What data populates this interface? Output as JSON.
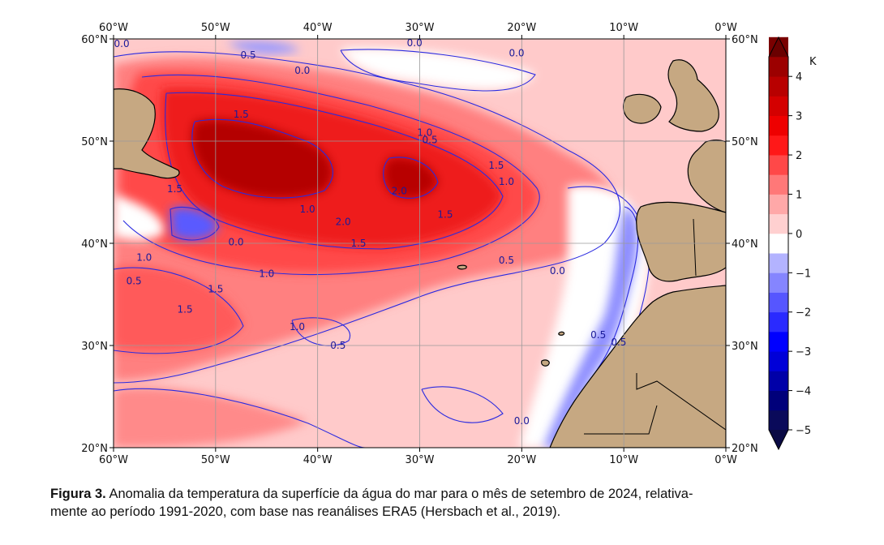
{
  "map": {
    "lon_labels": [
      "60°W",
      "50°W",
      "40°W",
      "30°W",
      "20°W",
      "10°W",
      "0°W"
    ],
    "lat_labels": [
      "60°N",
      "50°N",
      "40°N",
      "30°N",
      "20°N"
    ],
    "lon_range": [
      -60,
      0
    ],
    "lat_range": [
      20,
      60
    ],
    "grid": true,
    "land_color": "#c6a882",
    "contour_color": "#2a2ae0",
    "contour_labels": [
      {
        "text": "0.0",
        "lon": -59.2,
        "lat": 59.2
      },
      {
        "text": "0.5",
        "lon": -46.8,
        "lat": 58.1
      },
      {
        "text": "0.0",
        "lon": -41.5,
        "lat": 56.6
      },
      {
        "text": "0.0",
        "lon": -30.5,
        "lat": 59.3
      },
      {
        "text": "0.0",
        "lon": -20.5,
        "lat": 58.3
      },
      {
        "text": "1.5",
        "lon": -47.5,
        "lat": 52.3
      },
      {
        "text": "1.0",
        "lon": -29.5,
        "lat": 50.5
      },
      {
        "text": "0.5",
        "lon": -29.0,
        "lat": 49.8
      },
      {
        "text": "1.5",
        "lon": -22.5,
        "lat": 47.3
      },
      {
        "text": "1.0",
        "lon": -21.5,
        "lat": 45.7
      },
      {
        "text": "1.5",
        "lon": -54.0,
        "lat": 45.0
      },
      {
        "text": "1.0",
        "lon": -41.0,
        "lat": 43.0
      },
      {
        "text": "2.0",
        "lon": -37.5,
        "lat": 41.8
      },
      {
        "text": "1.5",
        "lon": -27.5,
        "lat": 42.5
      },
      {
        "text": "2.0",
        "lon": -32.0,
        "lat": 44.8
      },
      {
        "text": "0.0",
        "lon": -48.0,
        "lat": 39.8
      },
      {
        "text": "1.0",
        "lon": -57.0,
        "lat": 38.3
      },
      {
        "text": "0.5",
        "lon": -58.0,
        "lat": 36.0
      },
      {
        "text": "1.5",
        "lon": -36.0,
        "lat": 39.7
      },
      {
        "text": "0.5",
        "lon": -21.5,
        "lat": 38.0
      },
      {
        "text": "0.0",
        "lon": -16.5,
        "lat": 37.0
      },
      {
        "text": "1.0",
        "lon": -45.0,
        "lat": 36.7
      },
      {
        "text": "1.5",
        "lon": -50.0,
        "lat": 35.2
      },
      {
        "text": "1.5",
        "lon": -53.0,
        "lat": 33.2
      },
      {
        "text": "1.0",
        "lon": -42.0,
        "lat": 31.5
      },
      {
        "text": "0.5",
        "lon": -38.0,
        "lat": 29.7
      },
      {
        "text": "0.5",
        "lon": -10.5,
        "lat": 30.0
      },
      {
        "text": "0.0",
        "lon": -20.0,
        "lat": 22.3
      },
      {
        "text": "0.5",
        "lon": -12.5,
        "lat": 30.7
      }
    ]
  },
  "colorbar": {
    "unit": "K",
    "ticks": [
      "4",
      "3",
      "2",
      "1",
      "0",
      "−1",
      "−2",
      "−3",
      "−4",
      "−5"
    ],
    "range": [
      -5,
      4.5
    ],
    "step": 0.5,
    "extend": "both",
    "colors_low_to_high": [
      "#0a0a5a",
      "#00007a",
      "#0000a8",
      "#0000d8",
      "#0000ff",
      "#2a2aff",
      "#5656ff",
      "#8585ff",
      "#b3b3ff",
      "#ffffff",
      "#ffd0d0",
      "#ffa8a8",
      "#ff7878",
      "#ff4848",
      "#ff1818",
      "#ee0000",
      "#d40000",
      "#b80000",
      "#9c0000",
      "#7a0000"
    ],
    "extend_low_color": "#0a0a44",
    "extend_high_color": "#6a0000"
  },
  "caption": {
    "label": "Figura 3.",
    "line1": " Anomalia da temperatura da superfície da água do mar para o mês de setembro de 2024, relativa-",
    "line2": "mente ao período 1991-2020, com base nas reanálises ERA5 (Hersbach et al., 2019)."
  }
}
